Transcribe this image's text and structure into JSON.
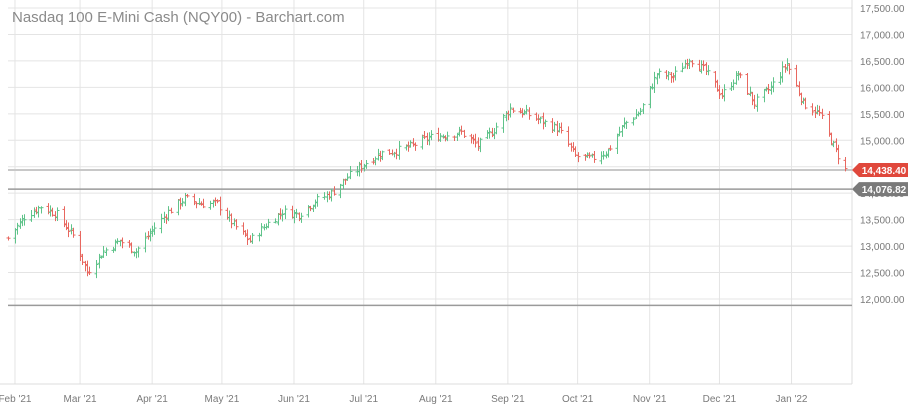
{
  "title": "Nasdaq 100 E-Mini Cash (NQY00) - Barchart.com",
  "colors": {
    "up": "#5fc38a",
    "down": "#e8675f",
    "grid": "#e4e4e4",
    "axis_text": "#7a7a7a",
    "last_price_badge": "#e0483c",
    "ref_badge": "#7a7a7a",
    "ref_line": "#9a9a9a"
  },
  "chart_data": {
    "type": "ohlc",
    "title": "Nasdaq 100 E-Mini Cash (NQY00) - Barchart.com",
    "xlabel": "",
    "ylabel": "",
    "ylim": [
      11000,
      17500
    ],
    "y_ticks": [
      "17,500.00",
      "17,000.00",
      "16,500.00",
      "16,000.00",
      "15,500.00",
      "15,000.00",
      "14,500.00",
      "14,000.00",
      "13,500.00",
      "13,000.00",
      "12,500.00",
      "12,000.00"
    ],
    "y_tick_values": [
      17500,
      17000,
      16500,
      16000,
      15500,
      15000,
      14500,
      14000,
      13500,
      13000,
      12500,
      12000
    ],
    "x_ticks": [
      "Feb '21",
      "Mar '21",
      "Apr '21",
      "May '21",
      "Jun '21",
      "Jul '21",
      "Aug '21",
      "Sep '21",
      "Oct '21",
      "Nov '21",
      "Dec '21",
      "Jan '22"
    ],
    "x_start": "2021-01-29",
    "x_end": "2022-01-24",
    "grid": true,
    "last_price": {
      "label": "14,438.40",
      "value": 14438.4
    },
    "reference_price": {
      "label": "14,076.82",
      "value": 14076.82
    },
    "lower_line_value": 11880,
    "series": [
      {
        "points": [
          [
            "2021-01-29",
            13150
          ],
          [
            "2021-02-05",
            13550
          ],
          [
            "2021-02-12",
            13750
          ],
          [
            "2021-02-19",
            13600
          ],
          [
            "2021-02-26",
            13200
          ],
          [
            "2021-03-04",
            12500
          ],
          [
            "2021-03-11",
            12900
          ],
          [
            "2021-03-18",
            13100
          ],
          [
            "2021-03-25",
            12900
          ],
          [
            "2021-04-01",
            13300
          ],
          [
            "2021-04-08",
            13650
          ],
          [
            "2021-04-15",
            13900
          ],
          [
            "2021-04-22",
            13800
          ],
          [
            "2021-04-29",
            13800
          ],
          [
            "2021-05-06",
            13400
          ],
          [
            "2021-05-13",
            13100
          ],
          [
            "2021-05-20",
            13400
          ],
          [
            "2021-05-27",
            13650
          ],
          [
            "2021-06-03",
            13600
          ],
          [
            "2021-06-10",
            13850
          ],
          [
            "2021-06-17",
            14000
          ],
          [
            "2021-06-24",
            14300
          ],
          [
            "2021-07-01",
            14550
          ],
          [
            "2021-07-08",
            14750
          ],
          [
            "2021-07-15",
            14800
          ],
          [
            "2021-07-22",
            14900
          ],
          [
            "2021-07-29",
            15050
          ],
          [
            "2021-08-05",
            15100
          ],
          [
            "2021-08-12",
            15150
          ],
          [
            "2021-08-19",
            14900
          ],
          [
            "2021-08-26",
            15200
          ],
          [
            "2021-09-02",
            15600
          ],
          [
            "2021-09-09",
            15500
          ],
          [
            "2021-09-16",
            15350
          ],
          [
            "2021-09-23",
            15200
          ],
          [
            "2021-09-30",
            14700
          ],
          [
            "2021-10-07",
            14650
          ],
          [
            "2021-10-14",
            14800
          ],
          [
            "2021-10-21",
            15300
          ],
          [
            "2021-10-28",
            15550
          ],
          [
            "2021-11-04",
            16250
          ],
          [
            "2021-11-11",
            16200
          ],
          [
            "2021-11-18",
            16550
          ],
          [
            "2021-11-25",
            16300
          ],
          [
            "2021-12-02",
            15850
          ],
          [
            "2021-12-09",
            16250
          ],
          [
            "2021-12-16",
            15700
          ],
          [
            "2021-12-23",
            16000
          ],
          [
            "2021-12-30",
            16450
          ],
          [
            "2022-01-06",
            15700
          ],
          [
            "2022-01-13",
            15500
          ],
          [
            "2022-01-20",
            14800
          ],
          [
            "2022-01-24",
            14438
          ]
        ]
      }
    ]
  }
}
